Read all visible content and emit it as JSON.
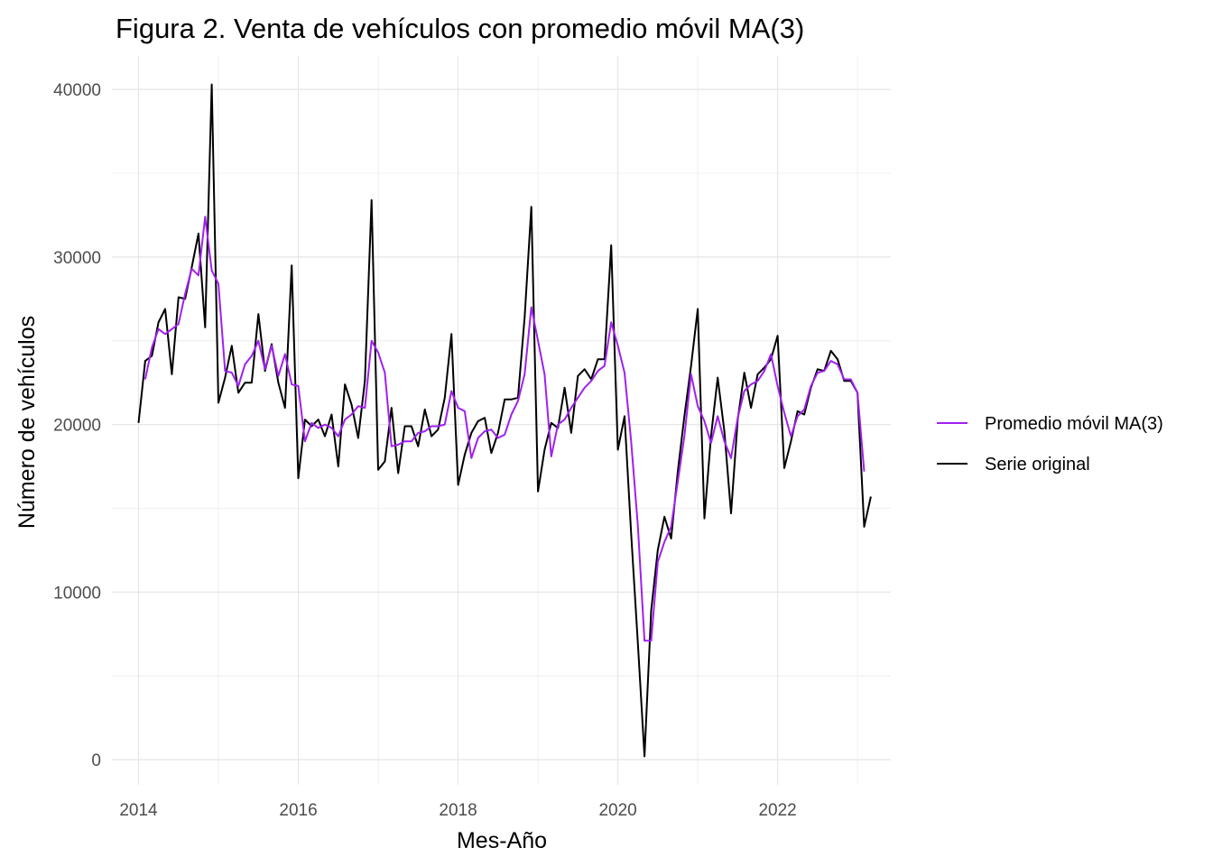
{
  "chart_data": {
    "type": "line",
    "title": "Figura 2. Venta de vehículos con promedio móvil MA(3)",
    "xlabel": "Mes-Año",
    "ylabel": "Número de vehículos",
    "start": "2014-01",
    "x_ticks": [
      "2014",
      "2016",
      "2018",
      "2020",
      "2022"
    ],
    "y_ticks": [
      "0",
      "10000",
      "20000",
      "30000",
      "40000"
    ],
    "xlim": [
      "2013-09",
      "2023-06"
    ],
    "ylim": [
      -1500,
      42000
    ],
    "grid": true,
    "legend_position": "right",
    "series": [
      {
        "name": "Promedio móvil MA(3)",
        "color": "#a020f0",
        "values": [
          null,
          22700,
          24600,
          25700,
          25400,
          25700,
          26000,
          27800,
          29300,
          28900,
          32400,
          29200,
          28400,
          23200,
          23100,
          22300,
          23600,
          24100,
          25000,
          23300,
          24700,
          22900,
          24200,
          22400,
          22300,
          19000,
          20100,
          19800,
          20000,
          19800,
          19300,
          20300,
          20600,
          21100,
          21000,
          25000,
          24300,
          23100,
          18700,
          18800,
          19000,
          19000,
          19500,
          19600,
          19900,
          19900,
          20000,
          22000,
          21000,
          20800,
          18000,
          19200,
          19600,
          19700,
          19200,
          19400,
          20600,
          21400,
          23000,
          27000,
          25000,
          23000,
          18100,
          20000,
          20300,
          21000,
          21600,
          22200,
          22600,
          23200,
          23500,
          26100,
          24700,
          23100,
          19000,
          14000,
          7100,
          7100,
          11800,
          13000,
          13900,
          16600,
          19300,
          23000,
          21100,
          20200,
          18900,
          20500,
          19000,
          18000,
          20400,
          22000,
          22400,
          22600,
          23200,
          24200,
          22300,
          20700,
          19300,
          20500,
          20900,
          22300,
          23100,
          23200,
          23800,
          23600,
          22700,
          22700,
          21900,
          17200
        ]
      },
      {
        "name": "Serie original",
        "color": "#000000",
        "values": [
          20100,
          23800,
          24100,
          26100,
          26900,
          23000,
          27600,
          27500,
          29400,
          31400,
          25800,
          40300,
          21300,
          22800,
          24700,
          21900,
          22500,
          22500,
          26600,
          23200,
          24800,
          22500,
          21000,
          29500,
          16800,
          20300,
          19900,
          20300,
          19300,
          20600,
          17500,
          22400,
          21200,
          19200,
          22600,
          33400,
          17300,
          17800,
          21000,
          17100,
          19900,
          19900,
          18700,
          20900,
          19300,
          19700,
          21600,
          25400,
          16400,
          18200,
          19500,
          20200,
          20400,
          18300,
          19500,
          21500,
          21500,
          21600,
          26400,
          33000,
          16000,
          18500,
          20100,
          19800,
          22200,
          19500,
          22900,
          23300,
          22700,
          23900,
          23900,
          30700,
          18500,
          20500,
          13500,
          7000,
          200,
          8900,
          12500,
          14500,
          13200,
          17200,
          20500,
          23500,
          26900,
          14400,
          19300,
          22800,
          19600,
          14700,
          20300,
          23100,
          21000,
          23000,
          23400,
          23900,
          25300,
          17400,
          19000,
          20800,
          20600,
          22200,
          23300,
          23200,
          24400,
          23900,
          22600,
          22600,
          21900,
          13900,
          15700
        ]
      }
    ]
  }
}
